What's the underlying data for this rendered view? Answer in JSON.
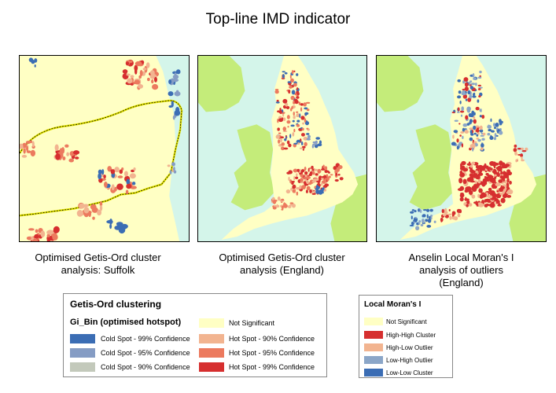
{
  "title": "Top-line IMD indicator",
  "maps": [
    {
      "caption_lines": [
        "Optimised Getis-Ord cluster",
        "analysis: Suffolk"
      ]
    },
    {
      "caption_lines": [
        "Optimised Getis-Ord cluster",
        "analysis (England)"
      ]
    },
    {
      "caption_lines": [
        "Anselin Local Moran's I",
        "analysis of outliers",
        "(England)"
      ]
    }
  ],
  "colors": {
    "sea": "#d4f5ea",
    "land_other": "#c4ec7a",
    "not_significant": "#ffffc4",
    "cold_99": "#3b6db4",
    "cold_95": "#859cc4",
    "cold_90": "#c3c9bb",
    "hot_90": "#f2b490",
    "hot_95": "#ec7a5e",
    "hot_99": "#d62f2f",
    "high_high": "#d62f2f",
    "high_low": "#f2b490",
    "low_high": "#8ba6c8",
    "low_low": "#3b6db4",
    "boundary": "#e6e600"
  },
  "getis_legend": {
    "title": "Getis-Ord clustering",
    "subtitle": "Gi_Bin (optimised hotspot)",
    "items": [
      {
        "label": "Cold Spot - 99% Confidence",
        "color": "#3b6db4"
      },
      {
        "label": "Cold Spot - 95% Confidence",
        "color": "#859cc4"
      },
      {
        "label": "Cold Spot - 90% Confidence",
        "color": "#c3c9bb"
      },
      {
        "label": "Not Significant",
        "color": "#ffffc4"
      },
      {
        "label": "Hot Spot - 90% Confidence",
        "color": "#f2b490"
      },
      {
        "label": "Hot Spot - 95% Confidence",
        "color": "#ec7a5e"
      },
      {
        "label": "Hot Spot - 99% Confidence",
        "color": "#d62f2f"
      }
    ]
  },
  "moran_legend": {
    "title": "Local Moran's I",
    "items": [
      {
        "label": "Not Significant",
        "color": "#ffffc4"
      },
      {
        "label": "High-High Cluster",
        "color": "#d62f2f"
      },
      {
        "label": "High-Low Outlier",
        "color": "#f2b490"
      },
      {
        "label": "Low-High Outlier",
        "color": "#8ba6c8"
      },
      {
        "label": "Low-Low Cluster",
        "color": "#3b6db4"
      }
    ]
  }
}
